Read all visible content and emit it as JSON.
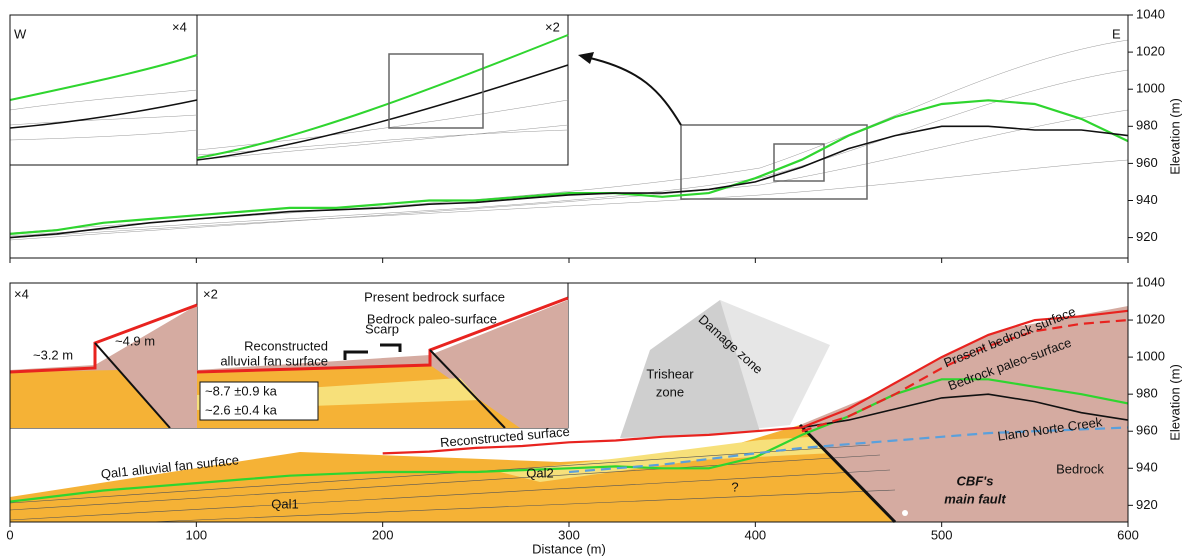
{
  "chart_data": [
    {
      "type": "line",
      "xlim": [
        0,
        600
      ],
      "ylim": [
        909,
        1040
      ],
      "xticks": [
        0,
        100,
        200,
        300,
        400,
        500,
        600
      ],
      "yticks": [
        920,
        940,
        960,
        980,
        1000,
        1020,
        1040
      ],
      "ylabel": "Elevation (m)",
      "annotations": [
        "W",
        "E",
        "×4",
        "×2"
      ],
      "x": [
        0,
        25,
        50,
        75,
        100,
        125,
        150,
        175,
        200,
        225,
        250,
        275,
        300,
        325,
        350,
        375,
        400,
        425,
        450,
        475,
        500,
        525,
        550,
        575,
        600
      ],
      "series": [
        {
          "color": "#2fd52f",
          "style": "solid",
          "values": [
            922,
            924,
            928,
            930,
            932,
            934,
            936,
            936,
            938,
            940,
            940,
            942,
            944,
            944,
            942,
            944,
            952,
            962,
            975,
            985,
            992,
            994,
            992,
            984,
            972
          ]
        },
        {
          "color": "#111111",
          "style": "solid",
          "values": [
            920,
            922,
            925,
            928,
            930,
            932,
            934,
            935,
            936,
            938,
            939,
            941,
            943,
            944,
            944,
            946,
            950,
            958,
            968,
            975,
            980,
            980,
            978,
            978,
            975
          ]
        }
      ]
    },
    {
      "type": "line",
      "xlim": [
        0,
        600
      ],
      "ylim": [
        911,
        1040
      ],
      "xticks": [
        0,
        100,
        200,
        300,
        400,
        500,
        600
      ],
      "yticks": [
        920,
        940,
        960,
        980,
        1000,
        1020,
        1040
      ],
      "xlabel": "Distance (m)",
      "ylabel": "Elevation (m)",
      "annotations": [
        "×4",
        "×2",
        "~3.2 m",
        "~4.9 m",
        "Present bedrock surface",
        "Bedrock paleo-surface",
        "Reconstructed",
        "alluvial fan surface",
        "Scarp",
        "~8.7 ±0.9 ka",
        "~2.6 ±0.4 ka",
        "Damage zone",
        "Trishear",
        "zone",
        "Present bedrock surface",
        "Bedrock paleo-surface",
        "Llano Norte Creek",
        "Reconstructed surface",
        "Qal1 alluvial fan surface",
        "Qal2",
        "Qal1",
        "?",
        "Bedrock",
        "CBF's",
        "main fault"
      ],
      "x": [
        0,
        25,
        50,
        75,
        100,
        125,
        150,
        175,
        200,
        225,
        250,
        275,
        300,
        325,
        350,
        375,
        400,
        425,
        450,
        475,
        500,
        525,
        550,
        575,
        600
      ],
      "series": [
        {
          "color": "#2fd52f",
          "style": "solid",
          "values": [
            922,
            925,
            928,
            930,
            932,
            934,
            936,
            937,
            938,
            938,
            938,
            939,
            940,
            941,
            940,
            940,
            946,
            958,
            968,
            980,
            988,
            988,
            984,
            980,
            975
          ]
        },
        {
          "color": "#111111",
          "style": "solid",
          "values": [
            null,
            null,
            null,
            null,
            null,
            null,
            null,
            null,
            null,
            null,
            null,
            null,
            null,
            null,
            null,
            null,
            null,
            962,
            966,
            972,
            978,
            980,
            976,
            970,
            966
          ]
        },
        {
          "color": "#e8231f",
          "style": "solid",
          "values": [
            null,
            null,
            null,
            null,
            null,
            null,
            null,
            null,
            null,
            null,
            null,
            null,
            null,
            null,
            null,
            null,
            null,
            962,
            972,
            986,
            1000,
            1012,
            1020,
            1022,
            1025
          ]
        },
        {
          "color": "#e8231f",
          "style": "dashed",
          "values": [
            null,
            null,
            null,
            null,
            null,
            null,
            null,
            null,
            null,
            null,
            null,
            null,
            null,
            null,
            null,
            null,
            null,
            960,
            968,
            980,
            994,
            1006,
            1014,
            1018,
            1020
          ]
        },
        {
          "color": "#5aa0dc",
          "style": "dashed",
          "values": [
            null,
            null,
            null,
            null,
            null,
            null,
            null,
            null,
            null,
            null,
            null,
            null,
            938,
            940,
            942,
            945,
            948,
            951,
            953,
            955,
            957,
            959,
            960,
            961,
            962
          ]
        },
        {
          "color": "#e8231f",
          "style": "solid",
          "values": [
            null,
            null,
            null,
            null,
            null,
            null,
            null,
            null,
            948,
            949,
            951,
            952,
            954,
            955,
            957,
            958,
            960,
            962,
            null,
            null,
            null,
            null,
            null,
            null,
            null
          ]
        }
      ]
    }
  ]
}
